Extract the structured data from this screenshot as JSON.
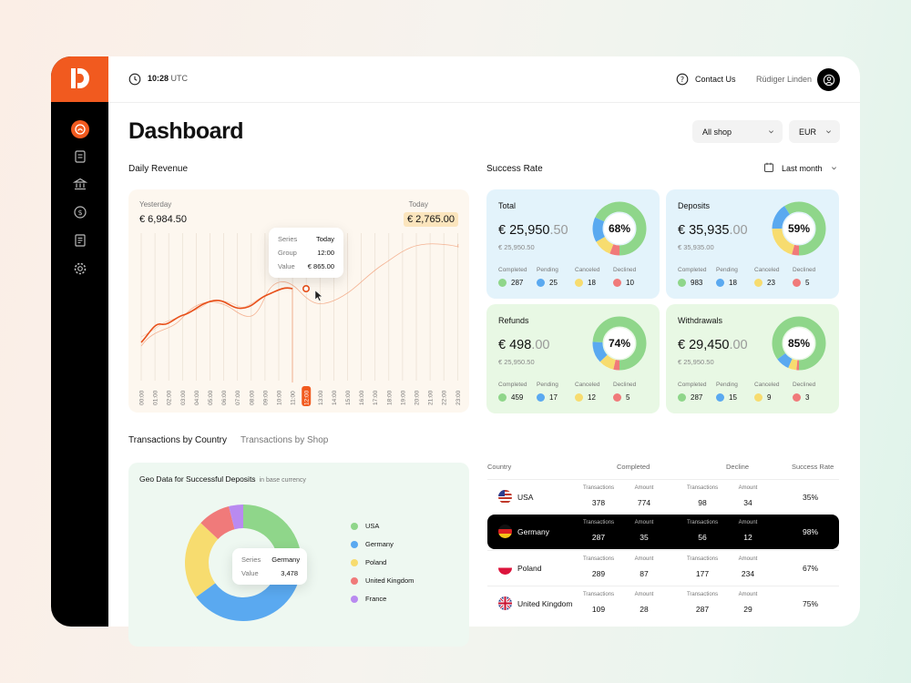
{
  "topbar": {
    "time": "10:28",
    "timezone": "UTC",
    "contact_label": "Contact Us",
    "user_name": "Rüdiger Linden"
  },
  "page": {
    "title": "Dashboard",
    "shop_select": "All shop",
    "currency_select": "EUR"
  },
  "sidebar": {
    "items": [
      {
        "icon": "dashboard-icon",
        "active": true
      },
      {
        "icon": "invoice-icon",
        "active": false
      },
      {
        "icon": "bank-icon",
        "active": false
      },
      {
        "icon": "dollar-coin-icon",
        "active": false
      },
      {
        "icon": "report-icon",
        "active": false
      },
      {
        "icon": "gear-icon",
        "active": false
      }
    ]
  },
  "daily_revenue": {
    "section_title": "Daily Revenue",
    "yesterday_label": "Yesterday",
    "yesterday_value": "€ 6,984.50",
    "today_label": "Today",
    "today_value": "€ 2,765.00",
    "tooltip": {
      "series_label": "Series",
      "series_value": "Today",
      "group_label": "Group",
      "group_value": "12:00",
      "value_label": "Value",
      "value_value": "€ 865.00"
    },
    "hours": [
      "00:00",
      "01:00",
      "02:00",
      "03:00",
      "04:00",
      "05:00",
      "06:00",
      "07:00",
      "08:00",
      "09:00",
      "10:00",
      "11:00",
      "12:00",
      "13:00",
      "14:00",
      "15:00",
      "16:00",
      "17:00",
      "18:00",
      "19:00",
      "20:00",
      "21:00",
      "22:00",
      "23:00"
    ],
    "highlight_hour": "12:00"
  },
  "success_rate": {
    "section_title": "Success Rate",
    "period_select": "Last month",
    "stat_labels": [
      "Completed",
      "Pending",
      "Canceled",
      "Declined"
    ],
    "status_colors": [
      "#8fd68a",
      "#5aa9f0",
      "#f7dc6f",
      "#f07a7a"
    ],
    "cards": [
      {
        "title": "Total",
        "amount_main": "€ 25,950",
        "amount_dec": ".50",
        "sub": "€ 25,950.50",
        "percent": "68%",
        "values": [
          "287",
          "25",
          "18",
          "10"
        ],
        "bg": "#e3f3fb"
      },
      {
        "title": "Deposits",
        "amount_main": "€ 35,935",
        "amount_dec": ".00",
        "sub": "€ 35,935.00",
        "percent": "59%",
        "values": [
          "983",
          "18",
          "23",
          "5"
        ],
        "bg": "#e3f3fb"
      },
      {
        "title": "Refunds",
        "amount_main": "€ 498",
        "amount_dec": ".00",
        "sub": "€ 25,950.50",
        "percent": "74%",
        "values": [
          "459",
          "17",
          "12",
          "5"
        ],
        "bg": "#e8f8e4"
      },
      {
        "title": "Withdrawals",
        "amount_main": "€ 29,450",
        "amount_dec": ".00",
        "sub": "€ 25,950.50",
        "percent": "85%",
        "values": [
          "287",
          "15",
          "9",
          "3"
        ],
        "bg": "#e8f8e4"
      }
    ]
  },
  "tabs": {
    "country": "Transactions by Country",
    "shop": "Transactions by Shop"
  },
  "geo": {
    "title": "Geo Data for Successful Deposits",
    "subtitle": "in base currency",
    "tooltip": {
      "series_label": "Series",
      "series_value": "Germany",
      "value_label": "Value",
      "value_value": "3,478"
    },
    "legend": [
      {
        "name": "USA",
        "color": "#8fd68a"
      },
      {
        "name": "Germany",
        "color": "#5aa9f0"
      },
      {
        "name": "Poland",
        "color": "#f7dc6f"
      },
      {
        "name": "United Kingdom",
        "color": "#f07a7a"
      },
      {
        "name": "France",
        "color": "#b98af0"
      }
    ]
  },
  "chart_data": {
    "type": "pie",
    "categories": [
      "USA",
      "Germany",
      "Poland",
      "United Kingdom",
      "France"
    ],
    "values": [
      27,
      38,
      22,
      9,
      4
    ]
  },
  "country_table": {
    "headers": {
      "country": "Country",
      "completed": "Completed",
      "decline": "Decline",
      "success_rate": "Success Rate"
    },
    "sub_labels": {
      "transactions": "Transactions",
      "amount": "Amount"
    },
    "rows": [
      {
        "country": "USA",
        "c_tx": "378",
        "c_amt": "774",
        "d_tx": "98",
        "d_amt": "34",
        "rate": "35%"
      },
      {
        "country": "Germany",
        "c_tx": "287",
        "c_amt": "35",
        "d_tx": "56",
        "d_amt": "12",
        "rate": "98%"
      },
      {
        "country": "Poland",
        "c_tx": "289",
        "c_amt": "87",
        "d_tx": "177",
        "d_amt": "234",
        "rate": "67%"
      },
      {
        "country": "United Kingdom",
        "c_tx": "109",
        "c_amt": "28",
        "d_tx": "287",
        "d_amt": "29",
        "rate": "75%"
      }
    ]
  }
}
